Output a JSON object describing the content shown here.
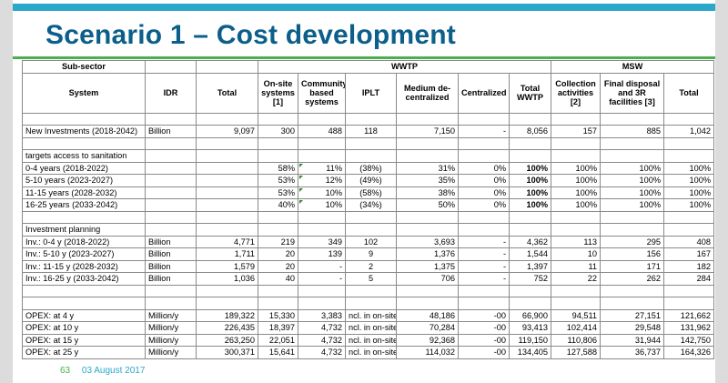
{
  "title": "Scenario 1 – Cost development",
  "footer": {
    "page": "63",
    "date": "03 August 2017"
  },
  "table": {
    "header": {
      "subsector": "Sub-sector",
      "wwtp": "WWTP",
      "msw": "MSW",
      "system": "System",
      "idr": "IDR",
      "total": "Total",
      "onsite": "On-site systems [1]",
      "community": "Community based systems",
      "iplt": "IPLT",
      "medium": "Medium de-centralized",
      "centralized": "Centralized",
      "total_wwtp": "Total WWTP",
      "collection": "Collection activities [2]",
      "final": "Final disposal and 3R facilities [3]",
      "total_msw": "Total"
    },
    "rows": [
      {
        "kind": "blank"
      },
      {
        "kind": "data",
        "c": [
          "New Investments (2018-2042)",
          "Billion",
          "9,097",
          "300",
          "488",
          "118",
          "7,150",
          "-",
          "8,056",
          "157",
          "885",
          "1,042"
        ]
      },
      {
        "kind": "blank"
      },
      {
        "kind": "section",
        "label": "targets access to sanitation"
      },
      {
        "kind": "data",
        "m": true,
        "c": [
          "0-4 years (2018-2022)",
          "",
          "",
          "58%",
          "11%",
          "(38%)",
          "31%",
          "0%",
          "100%",
          "100%",
          "100%",
          "100%"
        ]
      },
      {
        "kind": "data",
        "m": true,
        "c": [
          "5-10 years (2023-2027)",
          "",
          "",
          "53%",
          "12%",
          "(49%)",
          "35%",
          "0%",
          "100%",
          "100%",
          "100%",
          "100%"
        ]
      },
      {
        "kind": "data",
        "m": true,
        "c": [
          "11-15 years (2028-2032)",
          "",
          "",
          "53%",
          "10%",
          "(58%)",
          "38%",
          "0%",
          "100%",
          "100%",
          "100%",
          "100%"
        ]
      },
      {
        "kind": "data",
        "m": true,
        "c": [
          "16-25 years (2033-2042)",
          "",
          "",
          "40%",
          "10%",
          "(34%)",
          "50%",
          "0%",
          "100%",
          "100%",
          "100%",
          "100%"
        ]
      },
      {
        "kind": "blank"
      },
      {
        "kind": "section",
        "label": "Investment planning"
      },
      {
        "kind": "data",
        "c": [
          "Inv.: 0-4 y (2018-2022)",
          "Billion",
          "4,771",
          "219",
          "349",
          "102",
          "3,693",
          "-",
          "4,362",
          "113",
          "295",
          "408"
        ]
      },
      {
        "kind": "data",
        "c": [
          "Inv.: 5-10 y (2023-2027)",
          "Billion",
          "1,711",
          "20",
          "139",
          "9",
          "1,376",
          "-",
          "1,544",
          "10",
          "156",
          "167"
        ]
      },
      {
        "kind": "data",
        "c": [
          "Inv.: 11-15 y (2028-2032)",
          "Billion",
          "1,579",
          "20",
          "-",
          "2",
          "1,375",
          "-",
          "1,397",
          "11",
          "171",
          "182"
        ]
      },
      {
        "kind": "data",
        "c": [
          "Inv.: 16-25 y (2033-2042)",
          "Billion",
          "1,036",
          "40",
          "-",
          "5",
          "706",
          "-",
          "752",
          "22",
          "262",
          "284"
        ]
      },
      {
        "kind": "blank"
      },
      {
        "kind": "blank"
      },
      {
        "kind": "data",
        "c": [
          "OPEX: at 4 y",
          "Million/y",
          "189,322",
          "15,330",
          "3,383",
          "ncl. in on-site",
          "48,186",
          "-00",
          "66,900",
          "94,511",
          "27,151",
          "121,662"
        ]
      },
      {
        "kind": "data",
        "c": [
          "OPEX: at 10 y",
          "Million/y",
          "226,435",
          "18,397",
          "4,732",
          "ncl. in on-site",
          "70,284",
          "-00",
          "93,413",
          "102,414",
          "29,548",
          "131,962"
        ]
      },
      {
        "kind": "data",
        "c": [
          "OPEX: at 15 y",
          "Million/y",
          "263,250",
          "22,051",
          "4,732",
          "ncl. in on-site",
          "92,368",
          "-00",
          "119,150",
          "110,806",
          "31,944",
          "142,750"
        ]
      },
      {
        "kind": "data",
        "c": [
          "OPEX: at 25 y",
          "Million/y",
          "300,371",
          "15,641",
          "4,732",
          "ncl. in on-site",
          "114,032",
          "-00",
          "134,405",
          "127,588",
          "36,737",
          "164,326"
        ]
      }
    ]
  }
}
